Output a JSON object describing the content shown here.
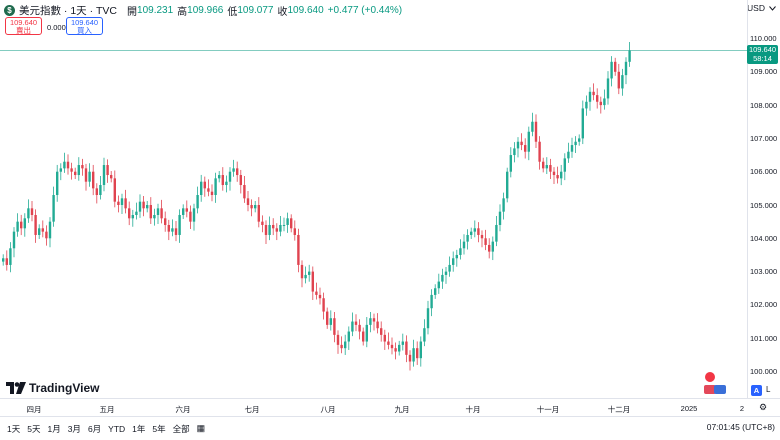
{
  "legend": {
    "symbol_icon": "dollar-icon",
    "symbol_glyph": "$",
    "title": "美元指數 · 1天 · TVC",
    "open_label": "開",
    "open": "109.231",
    "high_label": "高",
    "high": "109.966",
    "low_label": "低",
    "low": "109.077",
    "close_label": "收",
    "close": "109.640",
    "change": "+0.477 (+0.44%)"
  },
  "trade": {
    "sell_price": "109.640",
    "sell_label": "賣出",
    "spread": "0.000",
    "buy_price": "109.640",
    "buy_label": "買入"
  },
  "currency": "USD",
  "price_axis": {
    "ticks": [
      "110.000",
      "109.000",
      "108.000",
      "107.000",
      "106.000",
      "105.000",
      "104.000",
      "103.000",
      "102.000",
      "101.000",
      "100.000"
    ],
    "last_price": "109.640",
    "countdown": "58:14"
  },
  "time_axis": {
    "ticks": [
      "四月",
      "五月",
      "六月",
      "七月",
      "八月",
      "九月",
      "十月",
      "十一月",
      "十二月",
      "2025",
      "2"
    ]
  },
  "brand": "TradingView",
  "ranges": [
    "1天",
    "5天",
    "1月",
    "3月",
    "6月",
    "YTD",
    "1年",
    "5年",
    "全部"
  ],
  "clock": "07:01:45 (UTC+8)",
  "scale_buttons": {
    "auto": "A",
    "log": "L"
  },
  "colors": {
    "up": "#089981",
    "down": "#f23645",
    "up_candle": "#22ab94",
    "down_candle": "#e0434f"
  },
  "chart_data": {
    "type": "candlestick",
    "symbol": "美元指數",
    "interval": "1天",
    "ylim": [
      99.8,
      110.4
    ],
    "x_labels": [
      "四月",
      "五月",
      "六月",
      "七月",
      "八月",
      "九月",
      "十月",
      "十一月",
      "十二月",
      "2025"
    ],
    "closes": [
      103.4,
      103.2,
      103.7,
      104.2,
      104.5,
      104.3,
      104.6,
      104.9,
      104.7,
      104.1,
      104.3,
      104.2,
      104.0,
      104.5,
      105.3,
      106.0,
      106.1,
      106.3,
      106.1,
      106.0,
      105.9,
      106.2,
      106.1,
      105.7,
      106.0,
      105.5,
      105.3,
      105.6,
      106.2,
      105.9,
      105.8,
      105.1,
      105.0,
      105.2,
      104.9,
      104.6,
      104.7,
      104.8,
      105.1,
      104.9,
      105.0,
      104.6,
      104.7,
      104.9,
      104.6,
      104.4,
      104.2,
      104.3,
      104.1,
      104.7,
      104.9,
      104.8,
      104.5,
      104.9,
      105.3,
      105.7,
      105.5,
      105.4,
      105.3,
      105.8,
      105.9,
      105.6,
      105.7,
      106.0,
      106.1,
      105.9,
      105.6,
      105.2,
      105.0,
      104.9,
      105.0,
      104.5,
      104.4,
      104.1,
      104.4,
      104.3,
      104.2,
      104.4,
      104.4,
      104.6,
      104.3,
      104.1,
      103.2,
      102.8,
      102.9,
      103.0,
      102.4,
      102.3,
      102.2,
      101.8,
      101.4,
      101.6,
      101.1,
      100.8,
      100.7,
      100.9,
      101.2,
      101.5,
      101.4,
      101.2,
      100.9,
      101.4,
      101.6,
      101.5,
      101.3,
      101.1,
      100.9,
      100.8,
      100.7,
      100.6,
      100.8,
      100.9,
      100.5,
      100.3,
      100.7,
      100.4,
      100.9,
      101.3,
      101.9,
      102.3,
      102.5,
      102.7,
      102.9,
      103.0,
      103.2,
      103.4,
      103.5,
      103.7,
      103.9,
      104.1,
      104.2,
      104.3,
      104.1,
      104.0,
      103.8,
      103.6,
      103.9,
      104.4,
      104.8,
      105.2,
      106.0,
      106.5,
      106.7,
      106.9,
      106.8,
      106.6,
      107.2,
      107.5,
      106.9,
      106.3,
      106.1,
      106.2,
      106.0,
      105.9,
      105.8,
      106.0,
      106.4,
      106.6,
      106.8,
      106.9,
      107.0,
      107.9,
      108.1,
      108.4,
      108.3,
      108.1,
      108.0,
      108.2,
      108.8,
      109.3,
      109.0,
      108.5,
      108.9,
      109.3,
      109.64
    ]
  }
}
